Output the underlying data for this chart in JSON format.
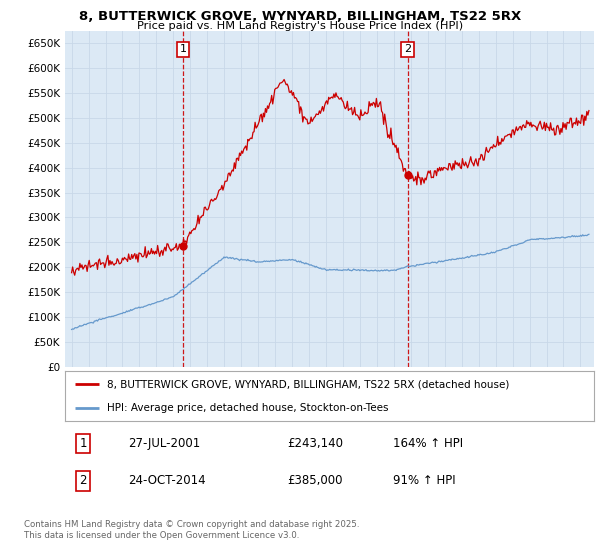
{
  "title_line1": "8, BUTTERWICK GROVE, WYNYARD, BILLINGHAM, TS22 5RX",
  "title_line2": "Price paid vs. HM Land Registry's House Price Index (HPI)",
  "background_color": "#dce9f5",
  "fig_bg_color": "#ffffff",
  "ylim": [
    0,
    675000
  ],
  "yticks": [
    0,
    50000,
    100000,
    150000,
    200000,
    250000,
    300000,
    350000,
    400000,
    450000,
    500000,
    550000,
    600000,
    650000
  ],
  "ytick_labels": [
    "£0",
    "£50K",
    "£100K",
    "£150K",
    "£200K",
    "£250K",
    "£300K",
    "£350K",
    "£400K",
    "£450K",
    "£500K",
    "£550K",
    "£600K",
    "£650K"
  ],
  "sale1_date": 2001.57,
  "sale1_price": 243140,
  "sale1_label": "1",
  "sale2_date": 2014.81,
  "sale2_price": 385000,
  "sale2_label": "2",
  "legend_red_label": "8, BUTTERWICK GROVE, WYNYARD, BILLINGHAM, TS22 5RX (detached house)",
  "legend_blue_label": "HPI: Average price, detached house, Stockton-on-Tees",
  "table_row1": [
    "1",
    "27-JUL-2001",
    "£243,140",
    "164% ↑ HPI"
  ],
  "table_row2": [
    "2",
    "24-OCT-2014",
    "£385,000",
    "91% ↑ HPI"
  ],
  "footnote": "Contains HM Land Registry data © Crown copyright and database right 2025.\nThis data is licensed under the Open Government Licence v3.0.",
  "red_color": "#cc0000",
  "blue_color": "#6699cc",
  "grid_color": "#c8d8e8"
}
